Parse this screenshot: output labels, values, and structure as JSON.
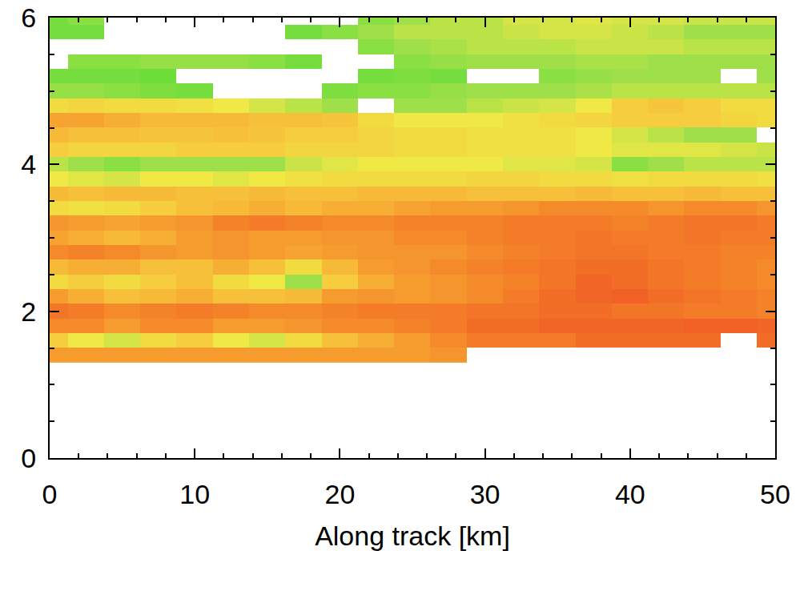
{
  "chart_data": {
    "type": "heatmap",
    "x_label": "Along track [km]",
    "xlim": [
      0,
      50
    ],
    "xticks": [
      0,
      10,
      20,
      30,
      40,
      50
    ],
    "ylim": [
      0,
      6
    ],
    "yticks": [
      0,
      2,
      4,
      6
    ],
    "zlim": [
      0,
      1
    ],
    "x": [
      0,
      2.5,
      5,
      7.5,
      10,
      12.5,
      15,
      17.5,
      20,
      22.5,
      25,
      27.5,
      30,
      32.5,
      35,
      37.5,
      40,
      42.5,
      45,
      47.5,
      50
    ],
    "y": [
      1.4,
      1.6,
      1.8,
      2.0,
      2.2,
      2.4,
      2.6,
      2.8,
      3.0,
      3.2,
      3.4,
      3.6,
      3.8,
      4.0,
      4.2,
      4.4,
      4.6,
      4.8,
      5.0,
      5.2,
      5.4,
      5.6,
      5.8,
      6.0
    ],
    "z": [
      [
        0.7,
        0.7,
        0.7,
        0.7,
        0.7,
        0.7,
        0.7,
        0.7,
        0.7,
        0.7,
        0.7,
        0.72,
        null,
        null,
        null,
        null,
        null,
        null,
        null,
        null,
        null
      ],
      [
        0.55,
        0.45,
        0.4,
        0.5,
        0.55,
        0.45,
        0.4,
        0.5,
        0.6,
        0.65,
        0.7,
        0.75,
        0.8,
        0.8,
        0.8,
        0.85,
        0.85,
        0.85,
        0.85,
        null,
        0.85
      ],
      [
        0.75,
        0.75,
        0.7,
        0.75,
        0.75,
        0.7,
        0.7,
        0.72,
        0.75,
        0.75,
        0.78,
        0.8,
        0.85,
        0.85,
        0.88,
        0.88,
        0.88,
        0.88,
        0.9,
        0.9,
        0.88
      ],
      [
        0.82,
        0.8,
        0.75,
        0.78,
        0.8,
        0.78,
        0.75,
        0.75,
        0.78,
        0.8,
        0.8,
        0.8,
        0.82,
        0.82,
        0.85,
        0.85,
        0.82,
        0.82,
        0.8,
        0.8,
        0.78
      ],
      [
        0.7,
        0.65,
        0.6,
        0.62,
        0.65,
        0.6,
        0.6,
        0.62,
        0.7,
        0.72,
        0.7,
        0.72,
        0.75,
        0.8,
        0.85,
        0.88,
        0.9,
        0.85,
        0.82,
        0.8,
        0.78
      ],
      [
        0.5,
        0.55,
        0.5,
        0.55,
        0.6,
        0.5,
        0.45,
        0.3,
        0.55,
        0.65,
        0.7,
        0.72,
        0.75,
        0.78,
        0.82,
        0.88,
        0.85,
        0.82,
        0.8,
        0.78,
        0.75
      ],
      [
        0.62,
        0.65,
        0.65,
        0.6,
        0.6,
        0.65,
        0.6,
        0.5,
        0.62,
        0.7,
        0.72,
        0.75,
        0.78,
        0.8,
        0.82,
        0.85,
        0.85,
        0.82,
        0.8,
        0.78,
        0.75
      ],
      [
        0.75,
        0.78,
        0.75,
        0.72,
        0.7,
        0.72,
        0.7,
        0.68,
        0.7,
        0.72,
        0.72,
        0.72,
        0.75,
        0.78,
        0.8,
        0.82,
        0.82,
        0.8,
        0.8,
        0.78,
        0.78
      ],
      [
        0.68,
        0.65,
        0.62,
        0.65,
        0.7,
        0.72,
        0.7,
        0.7,
        0.72,
        0.72,
        0.75,
        0.75,
        0.78,
        0.8,
        0.8,
        0.82,
        0.8,
        0.8,
        0.82,
        0.8,
        0.8
      ],
      [
        0.72,
        0.7,
        0.68,
        0.7,
        0.72,
        0.78,
        0.8,
        0.78,
        0.75,
        0.75,
        0.78,
        0.78,
        0.78,
        0.8,
        0.8,
        0.8,
        0.78,
        0.8,
        0.82,
        0.82,
        0.8
      ],
      [
        0.5,
        0.48,
        0.5,
        0.55,
        0.6,
        0.62,
        0.65,
        0.62,
        0.65,
        0.65,
        0.68,
        0.7,
        0.7,
        0.72,
        0.75,
        0.75,
        0.75,
        0.72,
        0.75,
        0.75,
        0.72
      ],
      [
        0.62,
        0.6,
        0.62,
        0.62,
        0.6,
        0.6,
        0.62,
        0.6,
        0.6,
        0.62,
        0.62,
        0.62,
        0.6,
        0.6,
        0.6,
        0.62,
        0.6,
        0.6,
        0.62,
        0.6,
        0.6
      ],
      [
        0.45,
        0.42,
        0.4,
        0.45,
        0.45,
        0.42,
        0.45,
        0.48,
        0.5,
        0.5,
        0.5,
        0.5,
        0.52,
        0.52,
        0.5,
        0.5,
        0.48,
        0.5,
        0.5,
        0.5,
        0.48
      ],
      [
        0.35,
        0.3,
        0.25,
        0.3,
        0.3,
        0.3,
        0.3,
        0.38,
        0.42,
        0.45,
        0.45,
        0.45,
        0.45,
        0.42,
        0.42,
        0.4,
        0.25,
        0.3,
        0.35,
        0.35,
        0.35
      ],
      [
        0.55,
        0.52,
        0.52,
        0.52,
        0.55,
        0.55,
        0.55,
        0.52,
        0.52,
        0.52,
        0.5,
        0.5,
        0.48,
        0.48,
        0.48,
        0.45,
        0.42,
        0.42,
        0.42,
        0.4,
        0.38
      ],
      [
        0.62,
        0.6,
        0.6,
        0.58,
        0.58,
        0.6,
        0.58,
        0.55,
        0.55,
        0.52,
        0.5,
        0.5,
        0.48,
        0.48,
        0.48,
        0.45,
        0.4,
        0.35,
        0.3,
        0.3,
        null
      ],
      [
        0.68,
        0.68,
        0.65,
        0.62,
        0.62,
        0.62,
        0.6,
        0.6,
        0.58,
        0.5,
        0.45,
        0.45,
        0.45,
        0.48,
        0.5,
        0.52,
        0.55,
        0.55,
        0.55,
        0.52,
        0.5
      ],
      [
        0.5,
        0.52,
        0.5,
        0.5,
        0.48,
        0.45,
        0.4,
        0.35,
        0.3,
        null,
        0.3,
        0.3,
        0.35,
        0.38,
        0.4,
        0.45,
        0.55,
        0.58,
        0.55,
        0.5,
        0.5
      ],
      [
        0.28,
        0.28,
        0.25,
        0.22,
        0.2,
        null,
        null,
        null,
        0.22,
        0.25,
        0.25,
        0.28,
        0.3,
        0.3,
        0.3,
        0.32,
        0.35,
        0.35,
        0.35,
        0.35,
        0.35
      ],
      [
        0.2,
        0.2,
        0.2,
        0.18,
        null,
        null,
        null,
        null,
        null,
        0.2,
        0.22,
        0.2,
        null,
        null,
        0.25,
        0.28,
        0.3,
        0.3,
        0.3,
        null,
        0.3
      ],
      [
        null,
        0.25,
        0.25,
        0.28,
        0.28,
        0.28,
        0.25,
        0.2,
        null,
        null,
        0.25,
        0.28,
        0.3,
        0.3,
        0.3,
        0.32,
        0.32,
        0.3,
        0.3,
        0.3,
        0.3
      ],
      [
        null,
        null,
        null,
        null,
        null,
        null,
        null,
        null,
        null,
        0.25,
        0.3,
        0.32,
        0.35,
        0.35,
        0.35,
        0.38,
        0.38,
        0.38,
        0.35,
        0.35,
        0.35
      ],
      [
        0.2,
        0.2,
        null,
        null,
        null,
        null,
        null,
        0.2,
        0.25,
        0.3,
        0.35,
        0.35,
        0.35,
        0.38,
        0.4,
        0.4,
        0.38,
        0.35,
        0.3,
        0.3,
        0.3
      ],
      [
        0.2,
        0.25,
        null,
        null,
        null,
        null,
        null,
        null,
        null,
        0.25,
        0.3,
        0.35,
        0.35,
        0.4,
        0.4,
        0.42,
        0.4,
        0.4,
        0.38,
        0.38,
        0.38
      ]
    ]
  }
}
